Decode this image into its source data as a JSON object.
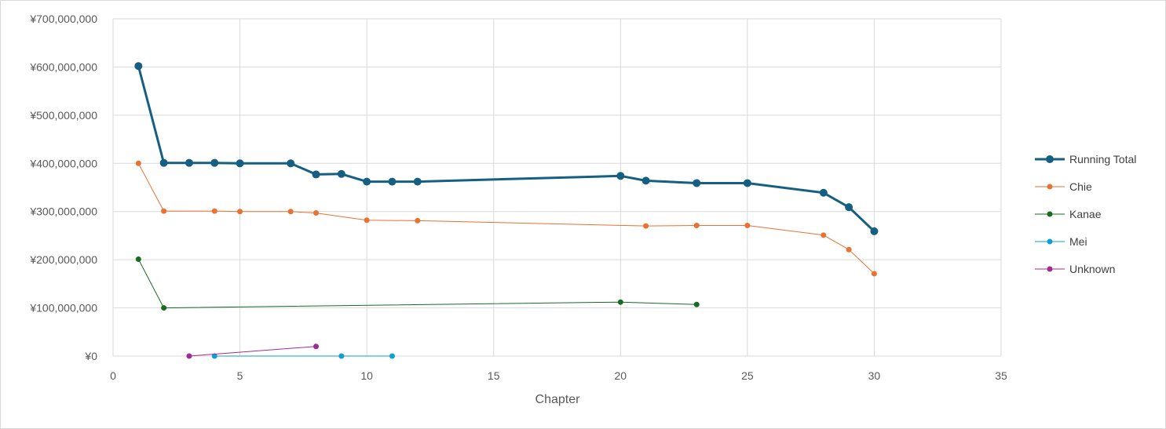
{
  "chart_data": {
    "type": "scatter",
    "mode": "lines+markers",
    "xlabel": "Chapter",
    "ylabel": "",
    "xlim": [
      0,
      35
    ],
    "ylim": [
      0,
      700000000
    ],
    "x_ticks": [
      0,
      5,
      10,
      15,
      20,
      25,
      30,
      35
    ],
    "y_ticks": [
      0,
      100000000,
      200000000,
      300000000,
      400000000,
      500000000,
      600000000,
      700000000
    ],
    "y_tick_labels": [
      "¥0",
      "¥100,000,000",
      "¥200,000,000",
      "¥300,000,000",
      "¥400,000,000",
      "¥500,000,000",
      "¥600,000,000",
      "¥700,000,000"
    ],
    "grid": true,
    "legend_position": "right",
    "series": [
      {
        "name": "Running Total",
        "color": "#156082",
        "thick": true,
        "points": [
          [
            1,
            602000000
          ],
          [
            2,
            401000000
          ],
          [
            3,
            401000000
          ],
          [
            4,
            401000000
          ],
          [
            5,
            400000000
          ],
          [
            7,
            400000000
          ],
          [
            8,
            377000000
          ],
          [
            9,
            378000000
          ],
          [
            10,
            362000000
          ],
          [
            11,
            362000000
          ],
          [
            12,
            362000000
          ],
          [
            20,
            374000000
          ],
          [
            21,
            364000000
          ],
          [
            23,
            359000000
          ],
          [
            25,
            359000000
          ],
          [
            28,
            339000000
          ],
          [
            29,
            309000000
          ],
          [
            30,
            259000000
          ]
        ]
      },
      {
        "name": "Chie",
        "color": "#E97132",
        "thick": false,
        "points": [
          [
            1,
            400000000
          ],
          [
            2,
            301000000
          ],
          [
            4,
            301000000
          ],
          [
            5,
            300000000
          ],
          [
            7,
            300000000
          ],
          [
            8,
            297000000
          ],
          [
            10,
            282000000
          ],
          [
            12,
            281000000
          ],
          [
            21,
            270000000
          ],
          [
            23,
            271000000
          ],
          [
            25,
            271000000
          ],
          [
            28,
            251000000
          ],
          [
            29,
            221000000
          ],
          [
            30,
            171000000
          ]
        ]
      },
      {
        "name": "Kanae",
        "color": "#196B24",
        "thick": false,
        "points": [
          [
            1,
            201000000
          ],
          [
            2,
            100000000
          ],
          [
            20,
            112000000
          ],
          [
            23,
            107000000
          ]
        ]
      },
      {
        "name": "Mei",
        "color": "#0F9ED5",
        "thick": false,
        "points": [
          [
            4,
            0
          ],
          [
            9,
            0
          ],
          [
            11,
            0
          ]
        ]
      },
      {
        "name": "Unknown",
        "color": "#A02B93",
        "thick": false,
        "points": [
          [
            3,
            0
          ],
          [
            8,
            20000000
          ]
        ]
      }
    ]
  }
}
